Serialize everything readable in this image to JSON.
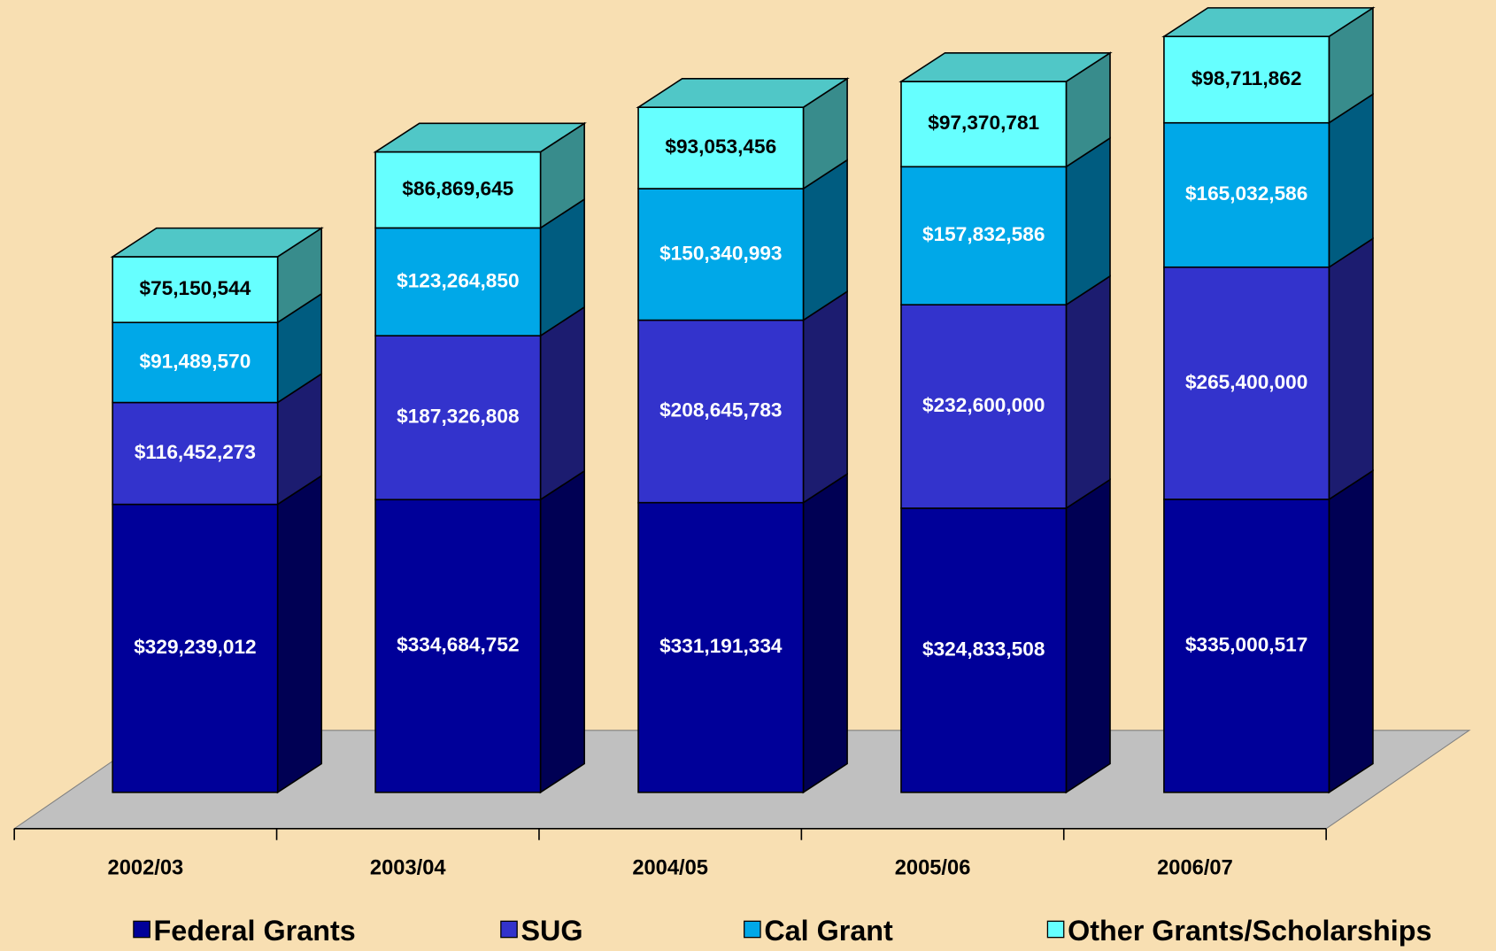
{
  "chart_data": {
    "type": "stacked-bar-3d",
    "categories": [
      "2002/03",
      "2003/04",
      "2004/05",
      "2005/06",
      "2006/07"
    ],
    "series": [
      {
        "name": "Federal Grants",
        "color": "#000099",
        "label_color": "#ffffff",
        "values": [
          329239012,
          334684752,
          331191334,
          324833508,
          335000517
        ],
        "value_labels": [
          "$329,239,012",
          "$334,684,752",
          "$331,191,334",
          "$324,833,508",
          "$335,000,517"
        ]
      },
      {
        "name": "SUG",
        "color": "#3333cc",
        "label_color": "#ffffff",
        "values": [
          116452273,
          187326808,
          208645783,
          232600000,
          265400000
        ],
        "value_labels": [
          "$116,452,273",
          "$187,326,808",
          "$208,645,783",
          "$232,600,000",
          "$265,400,000"
        ]
      },
      {
        "name": "Cal Grant",
        "color": "#00a8e8",
        "label_color": "#ffffff",
        "values": [
          91489570,
          123264850,
          150340993,
          157832586,
          165032586
        ],
        "value_labels": [
          "$91,489,570",
          "$123,264,850",
          "$150,340,993",
          "$157,832,586",
          "$165,032,586"
        ]
      },
      {
        "name": "Other Grants/Scholarships",
        "color": "#66ffff",
        "label_color": "#000000",
        "values": [
          75150544,
          86869645,
          93053456,
          97370781,
          98711862
        ],
        "value_labels": [
          "$75,150,544",
          "$86,869,645",
          "$93,053,456",
          "$97,370,781",
          "$98,711,862"
        ]
      }
    ],
    "legend": "bottom"
  }
}
